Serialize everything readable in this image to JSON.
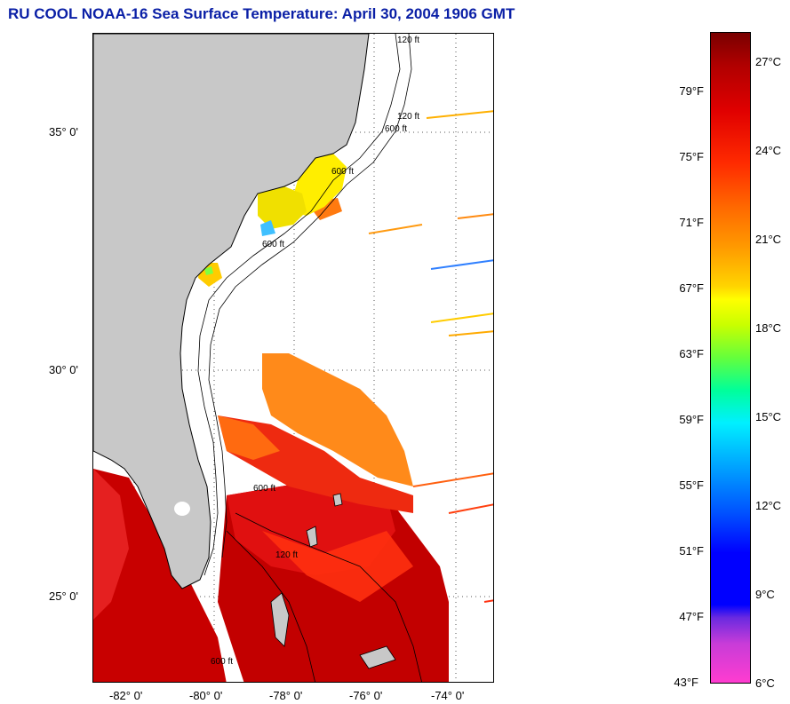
{
  "title": "RU COOL  NOAA-16  Sea Surface Temperature:  April 30, 2004 1906 GMT",
  "map": {
    "lat_labels": [
      "35° 0'",
      "30° 0'",
      "25° 0'"
    ],
    "lon_labels": [
      "-82° 0'",
      "-80° 0'",
      "-78° 0'",
      "-76° 0'",
      "-74° 0'"
    ],
    "contour_labels": [
      "120 ft",
      "120 ft",
      "600 ft",
      "600 ft",
      "600 ft",
      "600 ft",
      "120 ft",
      "600 ft"
    ],
    "colors": {
      "land": "#c8c8c8",
      "ocean_nodata": "#ffffff",
      "warm_gulf_stream": "#c00000",
      "orange": "#ff8a1a",
      "yellow": "#ffee00"
    }
  },
  "colorbar": {
    "celsius_labels": [
      "27°C",
      "24°C",
      "21°C",
      "18°C",
      "15°C",
      "12°C",
      "9°C",
      "6°C"
    ],
    "fahrenheit_labels": [
      "79°F",
      "75°F",
      "71°F",
      "67°F",
      "63°F",
      "59°F",
      "55°F",
      "51°F",
      "47°F",
      "43°F"
    ]
  }
}
